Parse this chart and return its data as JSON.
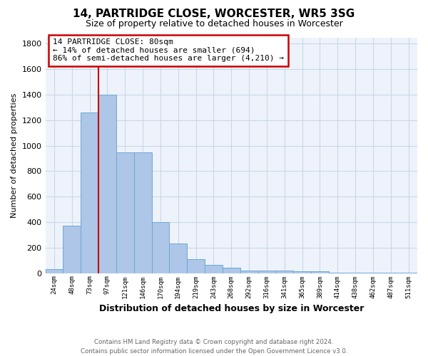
{
  "title": "14, PARTRIDGE CLOSE, WORCESTER, WR5 3SG",
  "subtitle": "Size of property relative to detached houses in Worcester",
  "xlabel": "Distribution of detached houses by size in Worcester",
  "ylabel": "Number of detached properties",
  "footnote": "Contains HM Land Registry data © Crown copyright and database right 2024.\nContains public sector information licensed under the Open Government Licence v3.0.",
  "bin_labels": [
    "24sqm",
    "48sqm",
    "73sqm",
    "97sqm",
    "121sqm",
    "146sqm",
    "170sqm",
    "194sqm",
    "219sqm",
    "243sqm",
    "268sqm",
    "292sqm",
    "316sqm",
    "341sqm",
    "365sqm",
    "389sqm",
    "414sqm",
    "438sqm",
    "462sqm",
    "487sqm",
    "511sqm"
  ],
  "bin_values": [
    30,
    370,
    1260,
    1400,
    950,
    950,
    400,
    230,
    110,
    65,
    45,
    20,
    20,
    20,
    15,
    15,
    5,
    5,
    5,
    5,
    5
  ],
  "bar_color": "#aec6e8",
  "bar_edge_color": "#6aaad4",
  "grid_color": "#c8d8e8",
  "background_color": "#eef3fb",
  "red_line_x": 2.48,
  "annotation_text": "14 PARTRIDGE CLOSE: 80sqm\n← 14% of detached houses are smaller (694)\n86% of semi-detached houses are larger (4,210) →",
  "annotation_box_color": "#ffffff",
  "annotation_border_color": "#cc0000",
  "ylim": [
    0,
    1850
  ],
  "yticks": [
    0,
    200,
    400,
    600,
    800,
    1000,
    1200,
    1400,
    1600,
    1800
  ]
}
